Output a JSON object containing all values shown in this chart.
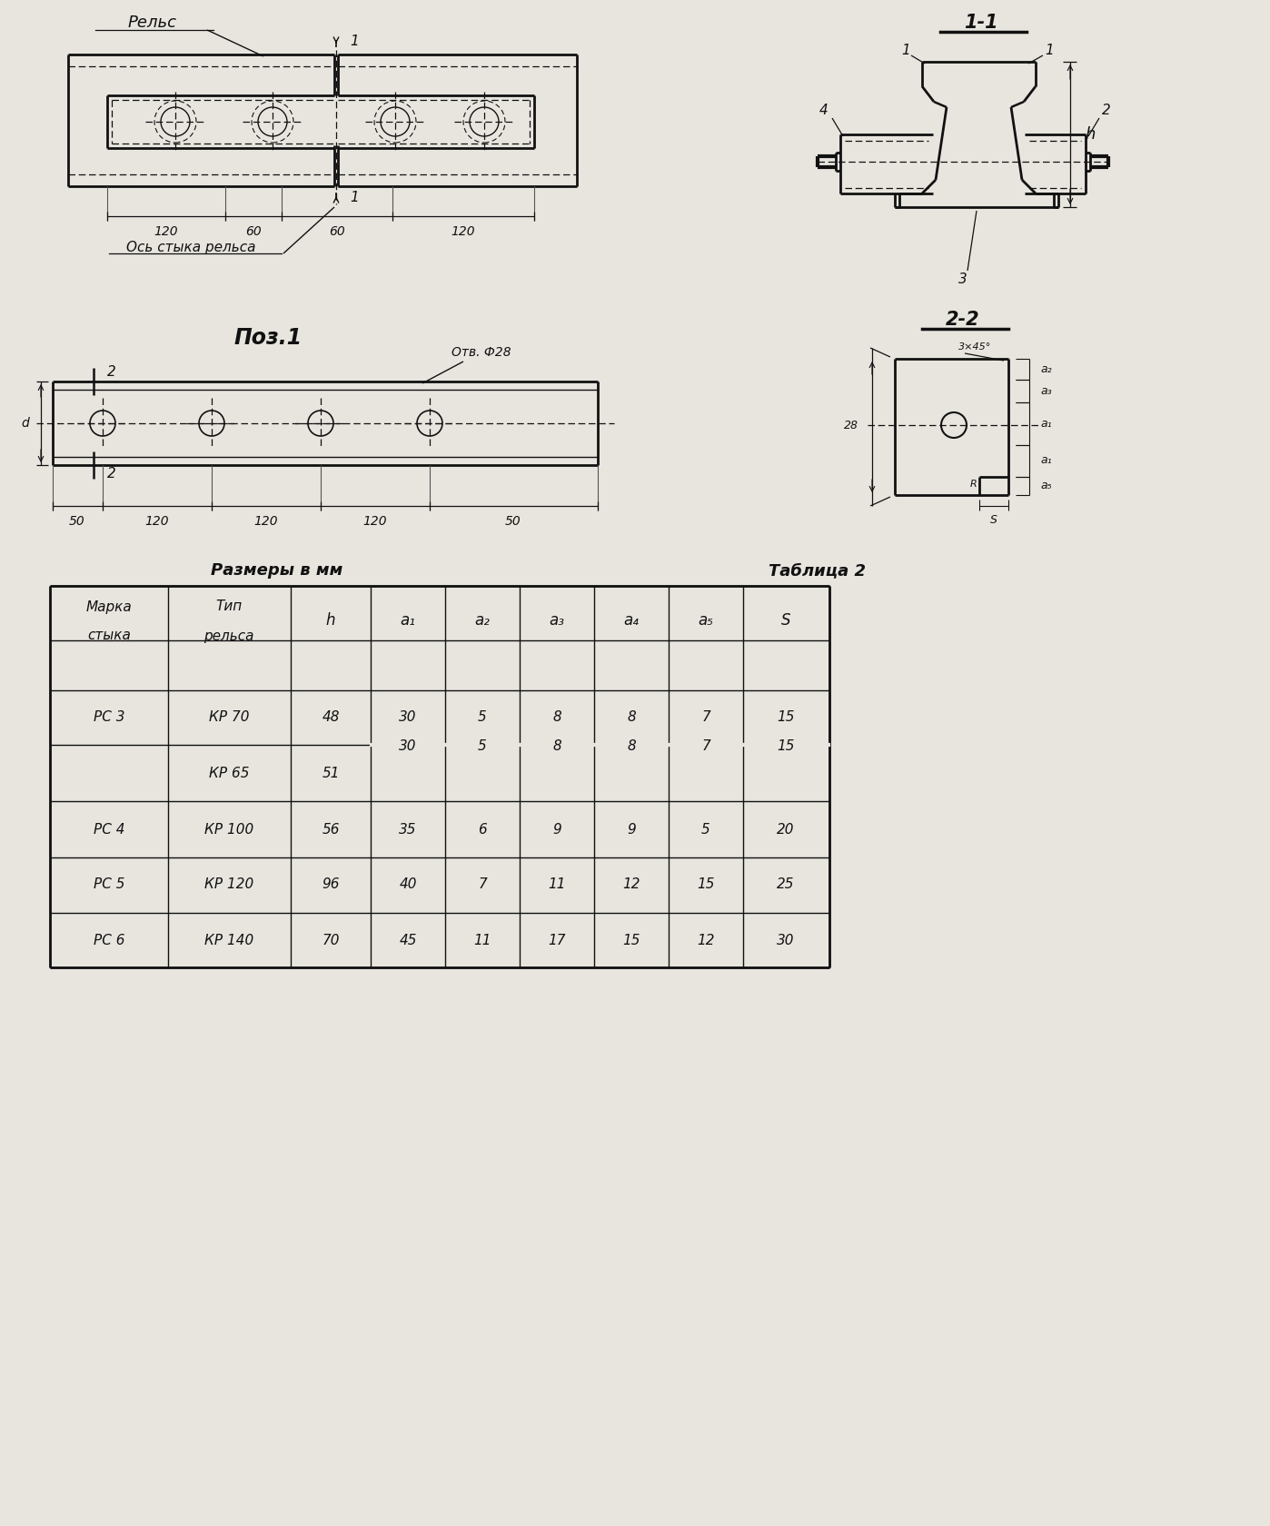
{
  "bg_color": "#e8e5df",
  "line_color": "#111111",
  "dim_top_labels": [
    "120",
    "60",
    "60",
    "120"
  ],
  "dim_bottom_labels": [
    "50",
    "120",
    "120",
    "120",
    "50"
  ],
  "label_relsz": "Рельс",
  "label_os": "Ось стыка рельса",
  "label_poz": "Поз.1",
  "label_otv": "Отв. Ф28",
  "label_11": "1-1",
  "label_22": "2-2",
  "label_3x45": "3×45°",
  "label_28": "28",
  "label_h": "h",
  "label_a1": "a₁",
  "label_a2": "a₂",
  "label_a3": "a₃",
  "label_a4": "a₄",
  "label_a5": "a₅",
  "label_S": "S",
  "label_R": "R",
  "tbl_title_left": "Размеры в мм",
  "tbl_title_right": "Таблица 2",
  "tbl_col_headers": [
    "Марка\nстыка",
    "Тип\nрельса",
    "h",
    "a₁",
    "a₂",
    "a₃",
    "a₄",
    "a₅",
    "S"
  ],
  "tbl_rows": [
    [
      "РС 3",
      "КР 70",
      "48",
      "30",
      "5",
      "8",
      "8",
      "7",
      "15"
    ],
    [
      "",
      "КР 65",
      "51",
      "",
      "",
      "",
      "",
      "",
      ""
    ],
    [
      "РС 4",
      "КР 100",
      "56",
      "35",
      "6",
      "9",
      "9",
      "5",
      "20"
    ],
    [
      "РС 5",
      "КР 120",
      "96",
      "40",
      "7",
      "11",
      "12",
      "15",
      "25"
    ],
    [
      "РС 6",
      "КР 140",
      "70",
      "45",
      "11",
      "17",
      "15",
      "12",
      "30"
    ]
  ]
}
